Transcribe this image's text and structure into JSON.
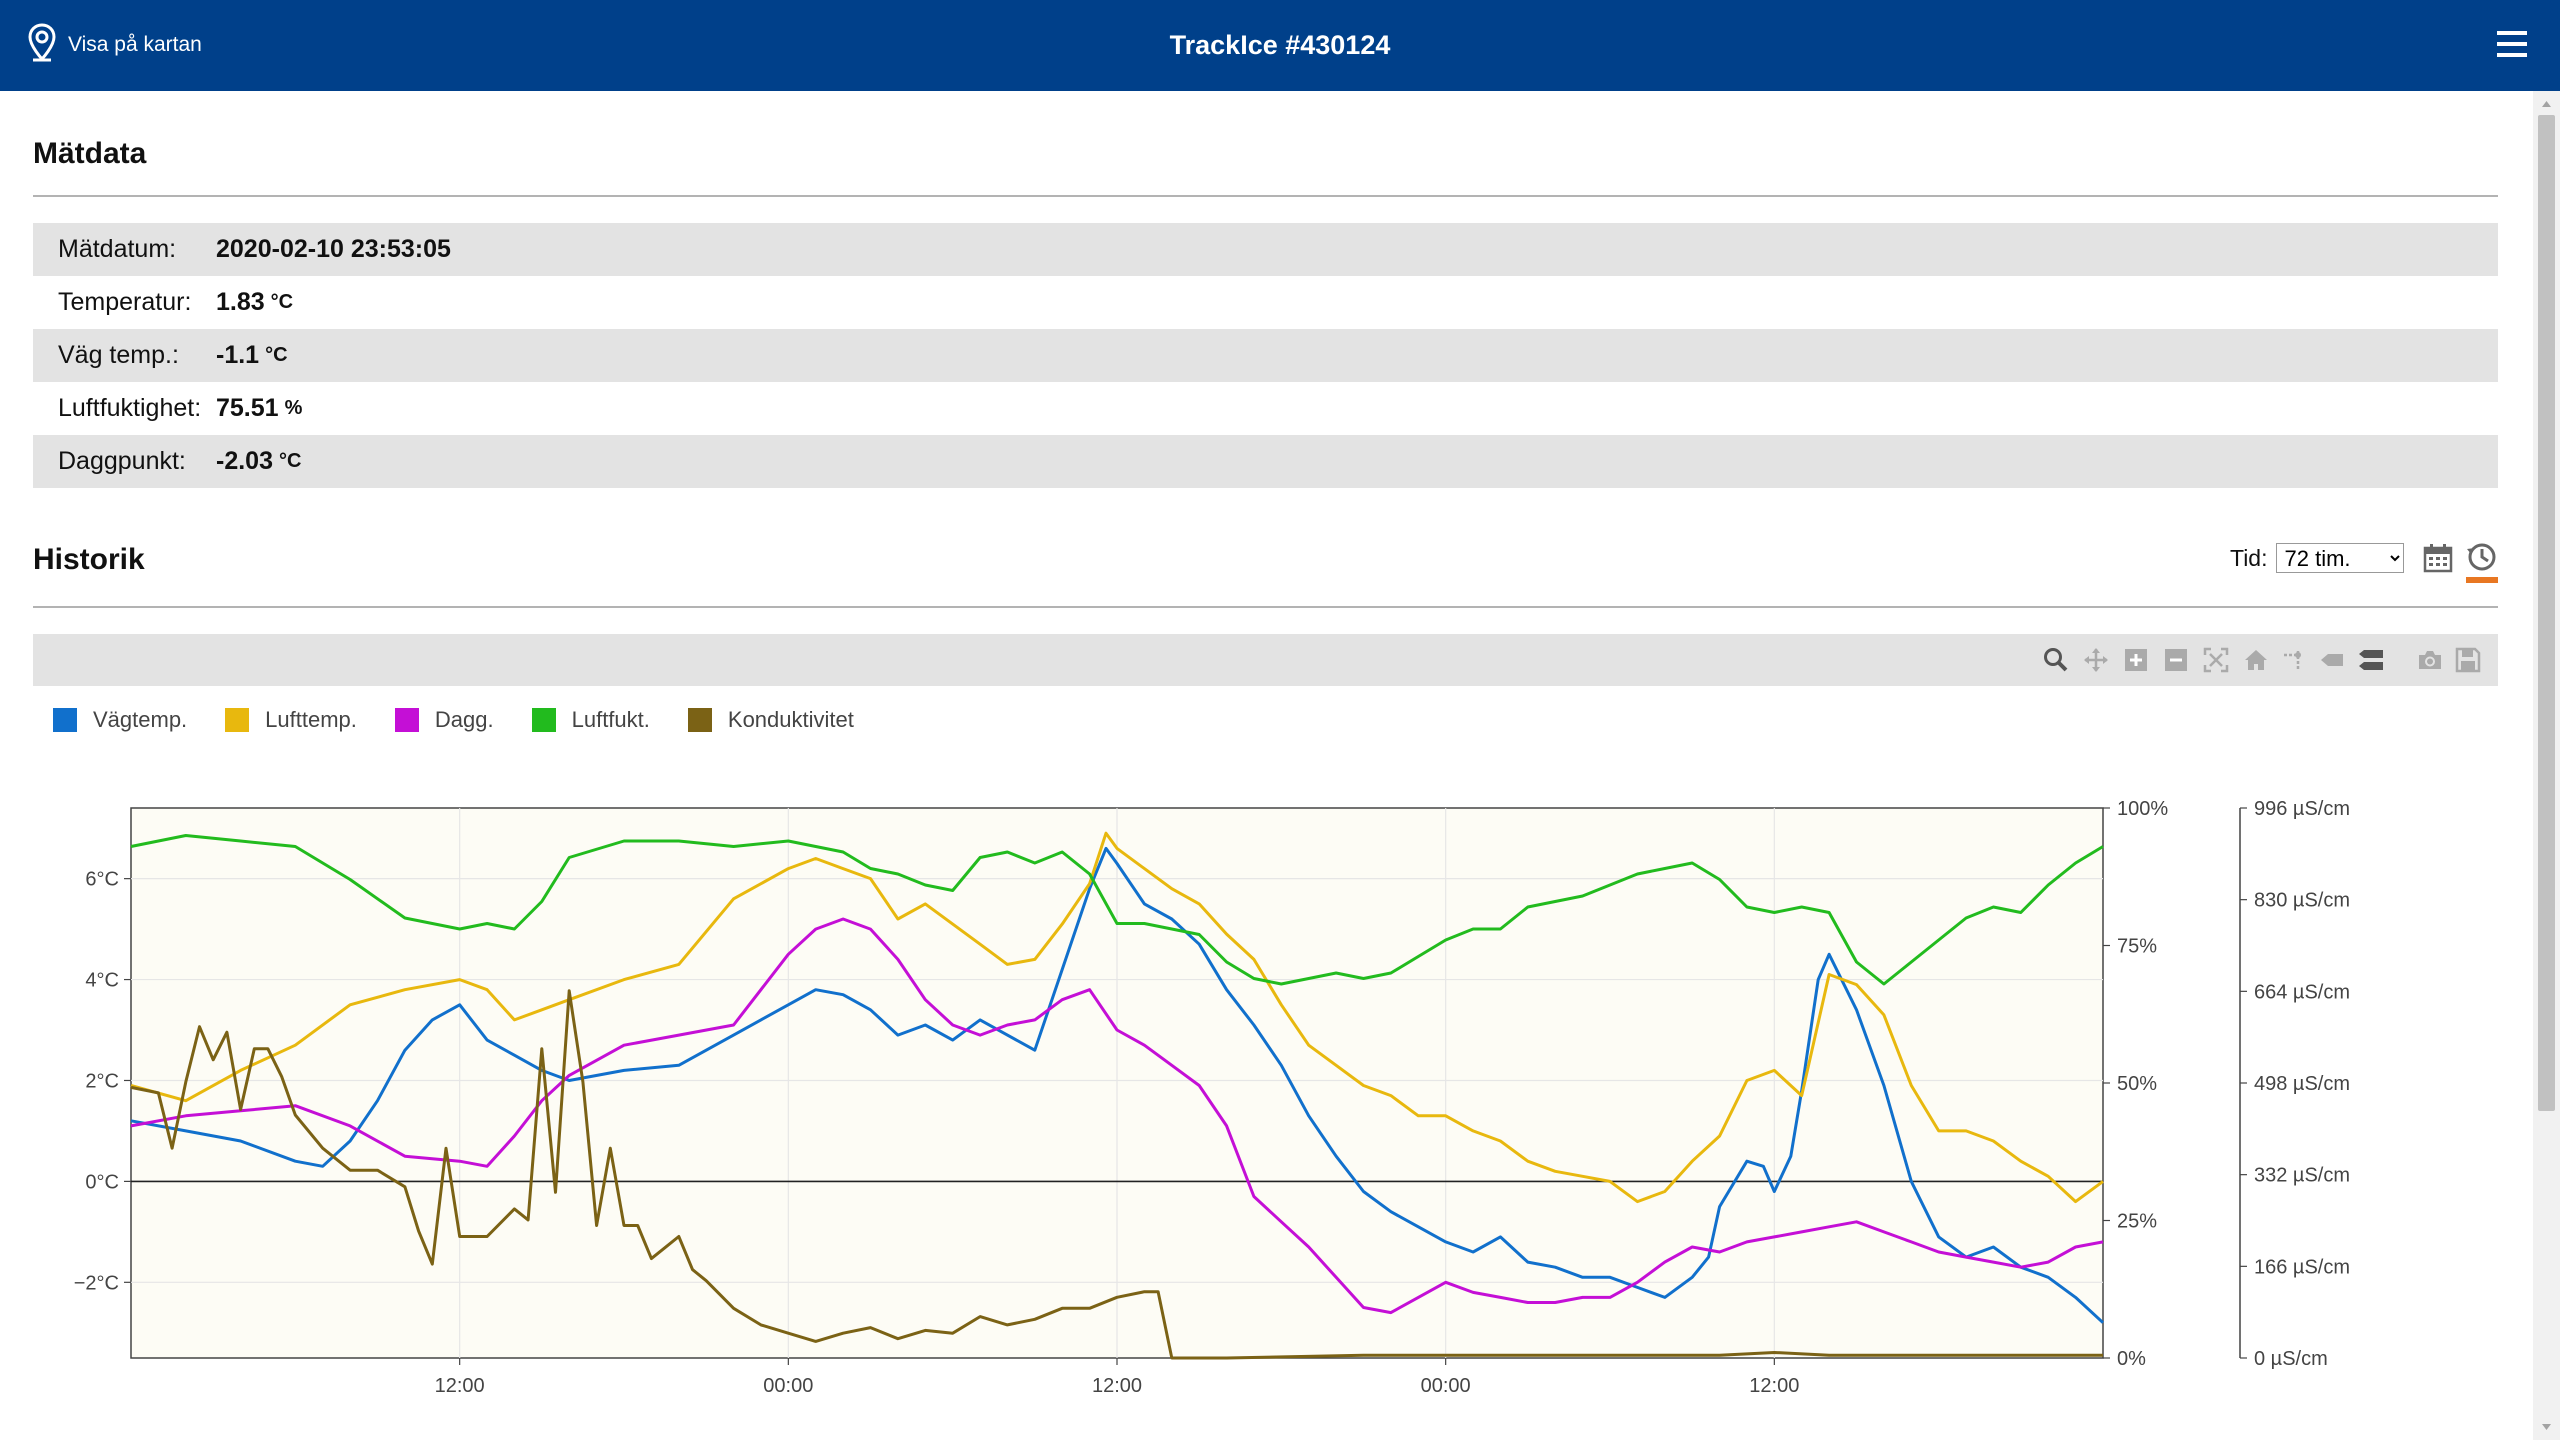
{
  "header": {
    "map_link_label": "Visa på kartan",
    "title": "TrackIce #430124",
    "bg_color": "#00408a"
  },
  "measure": {
    "heading": "Mätdata",
    "rows": [
      {
        "label": "Mätdatum:",
        "value": "2020-02-10 23:53:05",
        "unit": ""
      },
      {
        "label": "Temperatur:",
        "value": "1.83",
        "unit": "°C"
      },
      {
        "label": "Väg temp.:",
        "value": "-1.1",
        "unit": "°C"
      },
      {
        "label": "Luftfuktighet:",
        "value": "75.51",
        "unit": "%"
      },
      {
        "label": "Daggpunkt:",
        "value": "-2.03",
        "unit": "°C"
      }
    ]
  },
  "history": {
    "heading": "Historik",
    "time_label": "Tid:",
    "time_selected": "72 tim.",
    "accent_color": "#e87722"
  },
  "icons": {
    "map": "map-pin-icon",
    "menu": "hamburger-menu-icon",
    "calendar": "calendar-icon",
    "history": "history-clock-icon",
    "toolbar": [
      "zoom-icon",
      "pan-icon",
      "zoom-in-icon",
      "zoom-out-icon",
      "autoscale-icon",
      "reset-axes-icon",
      "spike-lines-icon",
      "hover-closest-icon",
      "hover-compare-icon",
      "camera-icon",
      "save-icon"
    ]
  },
  "chart_data": {
    "type": "line",
    "legend_position": "top-left",
    "plot_background": "#fdfcf5",
    "x_ticks": [
      "12:00",
      "00:00",
      "12:00",
      "00:00",
      "12:00"
    ],
    "x_range_hours": [
      0,
      72
    ],
    "x_tick_hours": [
      12,
      24,
      36,
      48,
      60
    ],
    "y_left": {
      "ticks": [
        "6°C",
        "4°C",
        "2°C",
        "0°C",
        "−2°C"
      ],
      "tick_values": [
        6,
        4,
        2,
        0,
        -2
      ],
      "range": [
        -3.5,
        7.4
      ]
    },
    "y_right1": {
      "ticks": [
        "100%",
        "75%",
        "50%",
        "25%",
        "0%"
      ],
      "tick_values": [
        100,
        75,
        50,
        25,
        0
      ],
      "range": [
        0,
        100
      ]
    },
    "y_right2": {
      "ticks": [
        "996 µS/cm",
        "830 µS/cm",
        "664 µS/cm",
        "498 µS/cm",
        "332 µS/cm",
        "166 µS/cm",
        "0 µS/cm"
      ],
      "tick_values": [
        996,
        830,
        664,
        498,
        332,
        166,
        0
      ],
      "range": [
        0,
        996
      ]
    },
    "series": [
      {
        "name": "Vägtemp.",
        "color": "#1170cc",
        "axis": "left",
        "x": [
          0,
          2,
          4,
          6,
          7,
          8,
          9,
          10,
          11,
          12,
          13,
          14,
          15,
          16,
          18,
          20,
          21,
          22,
          23,
          24,
          25,
          26,
          27,
          28,
          29,
          30,
          31,
          32,
          33,
          34,
          35,
          35.6,
          36,
          37,
          38,
          39,
          40,
          41,
          42,
          43,
          44,
          45,
          46,
          47,
          48,
          49,
          50,
          51,
          52,
          53,
          54,
          55,
          56,
          57,
          57.6,
          58,
          59,
          59.6,
          60,
          60.6,
          61,
          61.6,
          62,
          63,
          64,
          65,
          66,
          67,
          68,
          69,
          70,
          71,
          72
        ],
        "y": [
          1.2,
          1.0,
          0.8,
          0.4,
          0.3,
          0.8,
          1.6,
          2.6,
          3.2,
          3.5,
          2.8,
          2.5,
          2.2,
          2.0,
          2.2,
          2.3,
          2.6,
          2.9,
          3.2,
          3.5,
          3.8,
          3.7,
          3.4,
          2.9,
          3.1,
          2.8,
          3.2,
          2.9,
          2.6,
          4.2,
          5.8,
          6.6,
          6.3,
          5.5,
          5.2,
          4.7,
          3.8,
          3.1,
          2.3,
          1.3,
          0.5,
          -0.2,
          -0.6,
          -0.9,
          -1.2,
          -1.4,
          -1.1,
          -1.6,
          -1.7,
          -1.9,
          -1.9,
          -2.1,
          -2.3,
          -1.9,
          -1.5,
          -0.5,
          0.4,
          0.3,
          -0.2,
          0.5,
          1.8,
          4.0,
          4.5,
          3.4,
          1.9,
          0.0,
          -1.1,
          -1.5,
          -1.3,
          -1.7,
          -1.9,
          -2.3,
          -2.8
        ]
      },
      {
        "name": "Lufttemp.",
        "color": "#e8b80e",
        "axis": "left",
        "x": [
          0,
          2,
          4,
          6,
          8,
          10,
          12,
          13,
          14,
          15,
          16,
          18,
          20,
          22,
          24,
          25,
          26,
          27,
          28,
          29,
          30,
          31,
          32,
          33,
          34,
          35,
          35.6,
          36,
          37,
          38,
          39,
          40,
          41,
          42,
          43,
          44,
          45,
          46,
          47,
          48,
          49,
          50,
          51,
          52,
          53,
          54,
          55,
          56,
          57,
          58,
          59,
          60,
          61,
          62,
          63,
          64,
          65,
          66,
          67,
          68,
          69,
          70,
          71,
          72
        ],
        "y": [
          1.9,
          1.6,
          2.2,
          2.7,
          3.5,
          3.8,
          4.0,
          3.8,
          3.2,
          3.4,
          3.6,
          4.0,
          4.3,
          5.6,
          6.2,
          6.4,
          6.2,
          6.0,
          5.2,
          5.5,
          5.1,
          4.7,
          4.3,
          4.4,
          5.1,
          5.9,
          6.9,
          6.6,
          6.2,
          5.8,
          5.5,
          4.9,
          4.4,
          3.5,
          2.7,
          2.3,
          1.9,
          1.7,
          1.3,
          1.3,
          1.0,
          0.8,
          0.4,
          0.2,
          0.1,
          0.0,
          -0.4,
          -0.2,
          0.4,
          0.9,
          2.0,
          2.2,
          1.7,
          4.1,
          3.9,
          3.3,
          1.9,
          1.0,
          1.0,
          0.8,
          0.4,
          0.1,
          -0.4,
          0.0
        ]
      },
      {
        "name": "Dagg.",
        "color": "#c40fd6",
        "axis": "left",
        "x": [
          0,
          2,
          4,
          6,
          8,
          10,
          12,
          13,
          14,
          15,
          16,
          18,
          20,
          22,
          24,
          25,
          26,
          27,
          28,
          29,
          30,
          31,
          32,
          33,
          34,
          35,
          36,
          37,
          38,
          39,
          40,
          41,
          42,
          43,
          44,
          45,
          46,
          47,
          48,
          49,
          50,
          51,
          52,
          53,
          54,
          55,
          56,
          57,
          58,
          59,
          60,
          61,
          62,
          63,
          64,
          65,
          66,
          67,
          68,
          69,
          70,
          71,
          72
        ],
        "y": [
          1.1,
          1.3,
          1.4,
          1.5,
          1.1,
          0.5,
          0.4,
          0.3,
          0.9,
          1.6,
          2.1,
          2.7,
          2.9,
          3.1,
          4.5,
          5.0,
          5.2,
          5.0,
          4.4,
          3.6,
          3.1,
          2.9,
          3.1,
          3.2,
          3.6,
          3.8,
          3.0,
          2.7,
          2.3,
          1.9,
          1.1,
          -0.3,
          -0.8,
          -1.3,
          -1.9,
          -2.5,
          -2.6,
          -2.3,
          -2.0,
          -2.2,
          -2.3,
          -2.4,
          -2.4,
          -2.3,
          -2.3,
          -2.0,
          -1.6,
          -1.3,
          -1.4,
          -1.2,
          -1.1,
          -1.0,
          -0.9,
          -0.8,
          -1.0,
          -1.2,
          -1.4,
          -1.5,
          -1.6,
          -1.7,
          -1.6,
          -1.3,
          -1.2
        ]
      },
      {
        "name": "Luftfukt.",
        "color": "#22bb1e",
        "axis": "right1",
        "x": [
          0,
          2,
          4,
          6,
          8,
          10,
          11,
          12,
          13,
          14,
          15,
          16,
          18,
          20,
          22,
          24,
          25,
          26,
          27,
          28,
          29,
          30,
          31,
          32,
          33,
          34,
          35,
          36,
          37,
          38,
          39,
          40,
          41,
          42,
          43,
          44,
          45,
          46,
          47,
          48,
          49,
          50,
          51,
          52,
          53,
          54,
          55,
          56,
          57,
          58,
          59,
          60,
          61,
          62,
          63,
          64,
          65,
          66,
          67,
          68,
          69,
          70,
          71,
          72
        ],
        "y": [
          93,
          95,
          94,
          93,
          87,
          80,
          79,
          78,
          79,
          78,
          83,
          91,
          94,
          94,
          93,
          94,
          93,
          92,
          89,
          88,
          86,
          85,
          91,
          92,
          90,
          92,
          88,
          79,
          79,
          78,
          77,
          72,
          69,
          68,
          69,
          70,
          69,
          70,
          73,
          76,
          78,
          78,
          82,
          83,
          84,
          86,
          88,
          89,
          90,
          87,
          82,
          81,
          82,
          81,
          72,
          68,
          72,
          76,
          80,
          82,
          81,
          86,
          90,
          93
        ]
      },
      {
        "name": "Konduktivitet",
        "color": "#7b6215",
        "axis": "right2",
        "x": [
          0,
          1,
          1.5,
          2,
          2.5,
          3,
          3.5,
          4,
          4.5,
          5,
          5.5,
          6,
          7,
          8,
          9,
          10,
          10.5,
          11,
          11.5,
          12,
          13,
          14,
          14.5,
          15,
          15.5,
          16,
          16.5,
          17,
          17.5,
          18,
          18.5,
          19,
          19.5,
          20,
          20.5,
          21,
          22,
          23,
          24,
          25,
          26,
          27,
          28,
          29,
          30,
          31,
          32,
          33,
          34,
          35,
          36,
          37,
          37.5,
          38,
          38.5,
          39,
          40,
          45,
          50,
          55,
          58,
          60,
          62,
          66,
          72
        ],
        "y": [
          490,
          480,
          380,
          500,
          600,
          540,
          590,
          450,
          560,
          560,
          510,
          440,
          380,
          340,
          340,
          310,
          230,
          170,
          380,
          220,
          220,
          270,
          250,
          560,
          300,
          665,
          500,
          240,
          380,
          240,
          240,
          180,
          200,
          220,
          160,
          140,
          90,
          60,
          45,
          30,
          45,
          55,
          35,
          50,
          45,
          75,
          60,
          70,
          90,
          90,
          110,
          120,
          120,
          0,
          0,
          0,
          0,
          5,
          5,
          5,
          5,
          10,
          5,
          5,
          5
        ]
      }
    ]
  }
}
